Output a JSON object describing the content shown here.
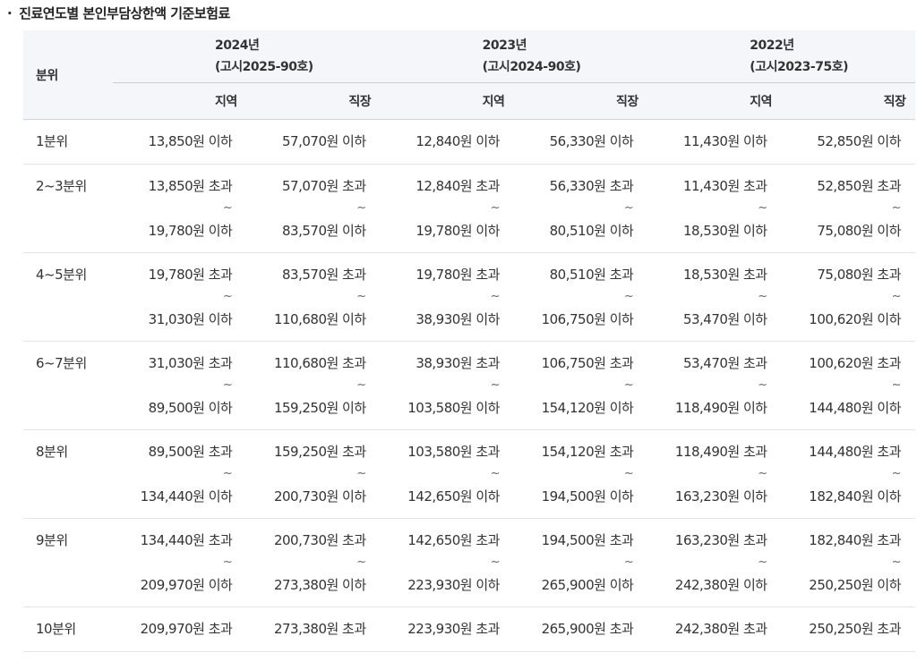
{
  "title": "진료연도별 본인부담상한액 기준보험료",
  "title_bullet": "·",
  "header": {
    "bunwi": "분위",
    "years": [
      {
        "year": "2024년",
        "notice": "(고시2025-90호)"
      },
      {
        "year": "2023년",
        "notice": "(고시2024-90호)"
      },
      {
        "year": "2022년",
        "notice": "(고시2023-75호)"
      }
    ],
    "sub": [
      "지역",
      "직장",
      "지역",
      "직장",
      "지역",
      "직장"
    ]
  },
  "range_separator": "~",
  "rows": [
    {
      "label": "1분위",
      "cells": [
        [
          "13,850원 이하"
        ],
        [
          "57,070원 이하"
        ],
        [
          "12,840원 이하"
        ],
        [
          "56,330원 이하"
        ],
        [
          "11,430원 이하"
        ],
        [
          "52,850원 이하"
        ]
      ]
    },
    {
      "label": "2~3분위",
      "cells": [
        [
          "13,850원 초과",
          "19,780원 이하"
        ],
        [
          "57,070원 초과",
          "83,570원 이하"
        ],
        [
          "12,840원 초과",
          "19,780원 이하"
        ],
        [
          "56,330원 초과",
          "80,510원 이하"
        ],
        [
          "11,430원 초과",
          "18,530원 이하"
        ],
        [
          "52,850원 초과",
          "75,080원 이하"
        ]
      ]
    },
    {
      "label": "4~5분위",
      "cells": [
        [
          "19,780원 초과",
          "31,030원 이하"
        ],
        [
          "83,570원 초과",
          "110,680원 이하"
        ],
        [
          "19,780원 초과",
          "38,930원 이하"
        ],
        [
          "80,510원 초과",
          "106,750원 이하"
        ],
        [
          "18,530원 초과",
          "53,470원 이하"
        ],
        [
          "75,080원 초과",
          "100,620원 이하"
        ]
      ]
    },
    {
      "label": "6~7분위",
      "cells": [
        [
          "31,030원 초과",
          "89,500원 이하"
        ],
        [
          "110,680원 초과",
          "159,250원 이하"
        ],
        [
          "38,930원 초과",
          "103,580원 이하"
        ],
        [
          "106,750원 초과",
          "154,120원 이하"
        ],
        [
          "53,470원 초과",
          "118,490원 이하"
        ],
        [
          "100,620원 초과",
          "144,480원 이하"
        ]
      ]
    },
    {
      "label": "8분위",
      "cells": [
        [
          "89,500원 초과",
          "134,440원 이하"
        ],
        [
          "159,250원 초과",
          "200,730원 이하"
        ],
        [
          "103,580원 초과",
          "142,650원 이하"
        ],
        [
          "154,120원 초과",
          "194,500원 이하"
        ],
        [
          "118,490원 초과",
          "163,230원 이하"
        ],
        [
          "144,480원 초과",
          "182,840원 이하"
        ]
      ]
    },
    {
      "label": "9분위",
      "cells": [
        [
          "134,440원 초과",
          "209,970원 이하"
        ],
        [
          "200,730원 초과",
          "273,380원 이하"
        ],
        [
          "142,650원 초과",
          "223,930원 이하"
        ],
        [
          "194,500원 초과",
          "265,900원 이하"
        ],
        [
          "163,230원 초과",
          "242,380원 이하"
        ],
        [
          "182,840원 초과",
          "250,250원 이하"
        ]
      ]
    },
    {
      "label": "10분위",
      "cells": [
        [
          "209,970원 초과"
        ],
        [
          "273,380원 초과"
        ],
        [
          "223,930원 초과"
        ],
        [
          "265,900원 초과"
        ],
        [
          "242,380원 초과"
        ],
        [
          "250,250원 초과"
        ]
      ]
    }
  ]
}
